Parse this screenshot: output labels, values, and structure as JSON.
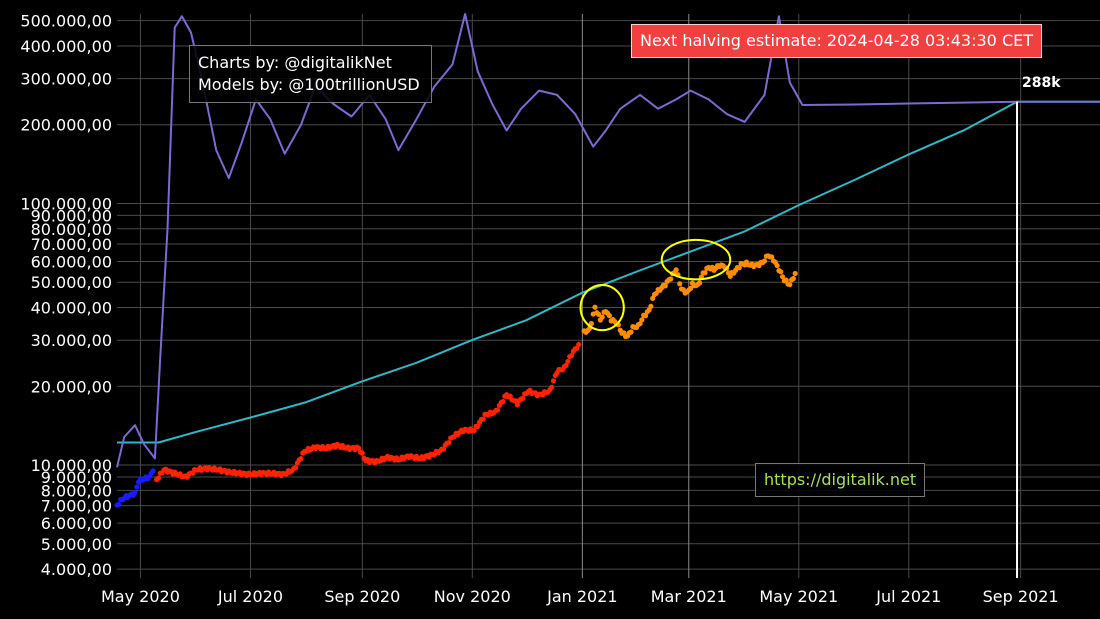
{
  "credits": {
    "line1": "Charts by: @digitalikNet",
    "line2": "Models by: @100trillionUSD"
  },
  "halving": {
    "text": "Next halving estimate: 2024-04-28 03:43:30 CET"
  },
  "site": {
    "text": "https://digitalik.net"
  },
  "peak_label": "288k",
  "colors": {
    "model_line": "#2eb8c8",
    "ratio_line": "#7b6ad6",
    "early_points": "#1a1aff",
    "mid_points": "#ff2200",
    "late_points": "#ff8c00",
    "highlight": "#ffff00",
    "marker_line": "#ffffff"
  },
  "chart_data": {
    "type": "scatter",
    "y_scale": "log",
    "ylim": [
      3700,
      530000
    ],
    "xlim": [
      "2020-04-18",
      "2021-10-15"
    ],
    "x_ticks": [
      "May 2020",
      "Jul 2020",
      "Sep 2020",
      "Nov 2020",
      "Jan 2021",
      "Mar 2021",
      "May 2021",
      "Jul 2021",
      "Sep 2021"
    ],
    "x_tick_dates": [
      "2020-05-01",
      "2020-07-01",
      "2020-09-01",
      "2020-11-01",
      "2021-01-01",
      "2021-03-01",
      "2021-05-01",
      "2021-07-01",
      "2021-09-01"
    ],
    "y_ticks": [
      {
        "value": 4000,
        "label": "4.000,00"
      },
      {
        "value": 5000,
        "label": "5.000,00"
      },
      {
        "value": 6000,
        "label": "6.000,00"
      },
      {
        "value": 7000,
        "label": "7.000,00"
      },
      {
        "value": 8000,
        "label": "8.000,00"
      },
      {
        "value": 9000,
        "label": "9.000,00"
      },
      {
        "value": 10000,
        "label": "10.000,00"
      },
      {
        "value": 20000,
        "label": "20.000,00"
      },
      {
        "value": 30000,
        "label": "30.000,00"
      },
      {
        "value": 40000,
        "label": "40.000,00"
      },
      {
        "value": 50000,
        "label": "50.000,00"
      },
      {
        "value": 60000,
        "label": "60.000,00"
      },
      {
        "value": 70000,
        "label": "70.000,00"
      },
      {
        "value": 80000,
        "label": "80.000,00"
      },
      {
        "value": 90000,
        "label": "90.000,00"
      },
      {
        "value": 100000,
        "label": "100.000,00"
      },
      {
        "value": 200000,
        "label": "200.000,00"
      },
      {
        "value": 300000,
        "label": "300.000,00"
      },
      {
        "value": 400000,
        "label": "400.000,00"
      },
      {
        "value": 500000,
        "label": "500.000,00"
      }
    ],
    "major_x_gridlines": [
      "2021-01-01",
      "2021-03-01"
    ],
    "marker_date": "2021-08-30",
    "series": [
      {
        "kind": "line",
        "color_key": "model_line",
        "points": [
          [
            "2020-04-18",
            12200
          ],
          [
            "2020-05-11",
            12200
          ],
          [
            "2020-06-01",
            13400
          ],
          [
            "2020-07-01",
            15200
          ],
          [
            "2020-08-01",
            17400
          ],
          [
            "2020-09-01",
            20900
          ],
          [
            "2020-10-01",
            24600
          ],
          [
            "2020-11-01",
            30100
          ],
          [
            "2020-12-01",
            35800
          ],
          [
            "2021-01-01",
            45600
          ],
          [
            "2021-02-01",
            55200
          ],
          [
            "2021-03-01",
            65100
          ],
          [
            "2021-04-01",
            78200
          ],
          [
            "2021-05-01",
            98600
          ],
          [
            "2021-06-01",
            123000
          ],
          [
            "2021-07-01",
            154000
          ],
          [
            "2021-08-01",
            191000
          ],
          [
            "2021-08-30",
            245000
          ],
          [
            "2021-10-15",
            245000
          ]
        ]
      },
      {
        "kind": "line",
        "color_key": "ratio_line",
        "points": [
          [
            "2020-04-18",
            9800
          ],
          [
            "2020-04-22",
            12800
          ],
          [
            "2020-04-28",
            14200
          ],
          [
            "2020-05-03",
            12000
          ],
          [
            "2020-05-09",
            10600
          ],
          [
            "2020-05-12",
            26000
          ],
          [
            "2020-05-16",
            80000
          ],
          [
            "2020-05-20",
            470000
          ],
          [
            "2020-05-24",
            520000
          ],
          [
            "2020-05-29",
            450000
          ],
          [
            "2020-06-04",
            300000
          ],
          [
            "2020-06-12",
            160000
          ],
          [
            "2020-06-19",
            125000
          ],
          [
            "2020-06-26",
            170000
          ],
          [
            "2020-07-04",
            250000
          ],
          [
            "2020-07-12",
            210000
          ],
          [
            "2020-07-20",
            155000
          ],
          [
            "2020-07-29",
            200000
          ],
          [
            "2020-08-06",
            280000
          ],
          [
            "2020-08-16",
            240000
          ],
          [
            "2020-08-26",
            215000
          ],
          [
            "2020-09-05",
            260000
          ],
          [
            "2020-09-14",
            210000
          ],
          [
            "2020-09-21",
            160000
          ],
          [
            "2020-10-01",
            210000
          ],
          [
            "2020-10-11",
            280000
          ],
          [
            "2020-10-21",
            340000
          ],
          [
            "2020-10-28",
            530000
          ],
          [
            "2020-11-04",
            320000
          ],
          [
            "2020-11-12",
            240000
          ],
          [
            "2020-11-20",
            190000
          ],
          [
            "2020-11-28",
            230000
          ],
          [
            "2020-12-08",
            270000
          ],
          [
            "2020-12-18",
            260000
          ],
          [
            "2020-12-28",
            220000
          ],
          [
            "2021-01-07",
            165000
          ],
          [
            "2021-01-14",
            190000
          ],
          [
            "2021-01-22",
            230000
          ],
          [
            "2021-02-02",
            260000
          ],
          [
            "2021-02-12",
            230000
          ],
          [
            "2021-02-22",
            250000
          ],
          [
            "2021-03-02",
            270000
          ],
          [
            "2021-03-12",
            250000
          ],
          [
            "2021-03-22",
            220000
          ],
          [
            "2021-04-01",
            205000
          ],
          [
            "2021-04-12",
            260000
          ],
          [
            "2021-04-20",
            520000
          ],
          [
            "2021-04-26",
            290000
          ],
          [
            "2021-05-03",
            238000
          ],
          [
            "2021-06-01",
            239000
          ],
          [
            "2021-07-01",
            241000
          ],
          [
            "2021-08-30",
            245000
          ],
          [
            "2021-10-15",
            245000
          ]
        ]
      },
      {
        "kind": "points",
        "color_key": "early_points",
        "points": [
          [
            "2020-04-18",
            7000
          ],
          [
            "2020-04-20",
            7300
          ],
          [
            "2020-04-22",
            7500
          ],
          [
            "2020-04-24",
            7600
          ],
          [
            "2020-04-26",
            7700
          ],
          [
            "2020-04-28",
            7800
          ],
          [
            "2020-04-30",
            8700
          ],
          [
            "2020-05-02",
            8800
          ],
          [
            "2020-05-04",
            8900
          ],
          [
            "2020-05-06",
            9000
          ],
          [
            "2020-05-08",
            9500
          ]
        ]
      },
      {
        "kind": "points",
        "color_key": "mid_points",
        "points": [
          [
            "2020-05-10",
            8800
          ],
          [
            "2020-05-14",
            9600
          ],
          [
            "2020-05-20",
            9300
          ],
          [
            "2020-05-26",
            9000
          ],
          [
            "2020-06-01",
            9600
          ],
          [
            "2020-06-07",
            9700
          ],
          [
            "2020-06-13",
            9600
          ],
          [
            "2020-06-19",
            9400
          ],
          [
            "2020-06-25",
            9300
          ],
          [
            "2020-07-01",
            9200
          ],
          [
            "2020-07-07",
            9300
          ],
          [
            "2020-07-13",
            9300
          ],
          [
            "2020-07-19",
            9200
          ],
          [
            "2020-07-25",
            9600
          ],
          [
            "2020-07-31",
            11300
          ],
          [
            "2020-08-06",
            11700
          ],
          [
            "2020-08-12",
            11600
          ],
          [
            "2020-08-18",
            11900
          ],
          [
            "2020-08-24",
            11600
          ],
          [
            "2020-08-30",
            11600
          ],
          [
            "2020-09-03",
            10400
          ],
          [
            "2020-09-09",
            10300
          ],
          [
            "2020-09-15",
            10700
          ],
          [
            "2020-09-21",
            10500
          ],
          [
            "2020-09-27",
            10800
          ],
          [
            "2020-10-03",
            10600
          ],
          [
            "2020-10-09",
            10900
          ],
          [
            "2020-10-15",
            11400
          ],
          [
            "2020-10-21",
            12800
          ],
          [
            "2020-10-27",
            13600
          ],
          [
            "2020-11-02",
            13600
          ],
          [
            "2020-11-08",
            15500
          ],
          [
            "2020-11-14",
            16000
          ],
          [
            "2020-11-20",
            18600
          ],
          [
            "2020-11-26",
            17200
          ],
          [
            "2020-12-02",
            19200
          ],
          [
            "2020-12-08",
            18500
          ],
          [
            "2020-12-14",
            19200
          ],
          [
            "2020-12-18",
            22800
          ],
          [
            "2020-12-22",
            23500
          ],
          [
            "2020-12-26",
            26500
          ],
          [
            "2020-12-30",
            28900
          ]
        ]
      },
      {
        "kind": "points",
        "color_key": "late_points",
        "points": [
          [
            "2021-01-02",
            32200
          ],
          [
            "2021-01-05",
            33000
          ],
          [
            "2021-01-08",
            40000
          ],
          [
            "2021-01-11",
            36000
          ],
          [
            "2021-01-14",
            39000
          ],
          [
            "2021-01-17",
            36000
          ],
          [
            "2021-01-20",
            35000
          ],
          [
            "2021-01-23",
            32000
          ],
          [
            "2021-01-26",
            31000
          ],
          [
            "2021-01-29",
            33500
          ],
          [
            "2021-02-01",
            34000
          ],
          [
            "2021-02-04",
            37000
          ],
          [
            "2021-02-07",
            39000
          ],
          [
            "2021-02-10",
            45000
          ],
          [
            "2021-02-13",
            47000
          ],
          [
            "2021-02-16",
            49000
          ],
          [
            "2021-02-19",
            52000
          ],
          [
            "2021-02-22",
            56000
          ],
          [
            "2021-02-25",
            47000
          ],
          [
            "2021-02-28",
            45500
          ],
          [
            "2021-03-03",
            49000
          ],
          [
            "2021-03-06",
            48500
          ],
          [
            "2021-03-09",
            54000
          ],
          [
            "2021-03-12",
            57000
          ],
          [
            "2021-03-15",
            56000
          ],
          [
            "2021-03-18",
            58000
          ],
          [
            "2021-03-21",
            57500
          ],
          [
            "2021-03-24",
            53000
          ],
          [
            "2021-03-27",
            55500
          ],
          [
            "2021-03-30",
            58500
          ],
          [
            "2021-04-02",
            59000
          ],
          [
            "2021-04-05",
            58000
          ],
          [
            "2021-04-08",
            58100
          ],
          [
            "2021-04-11",
            59500
          ],
          [
            "2021-04-14",
            63500
          ],
          [
            "2021-04-17",
            61000
          ],
          [
            "2021-04-20",
            56000
          ],
          [
            "2021-04-23",
            51000
          ],
          [
            "2021-04-26",
            49000
          ],
          [
            "2021-04-29",
            54000
          ]
        ]
      }
    ],
    "highlight_circles": [
      {
        "center": [
          "2021-01-12",
          40000
        ],
        "radius_days": 12,
        "radius_factor": 1.22
      },
      {
        "center": [
          "2021-03-05",
          61000
        ],
        "radius_days": 19,
        "radius_factor": 1.19
      }
    ]
  }
}
